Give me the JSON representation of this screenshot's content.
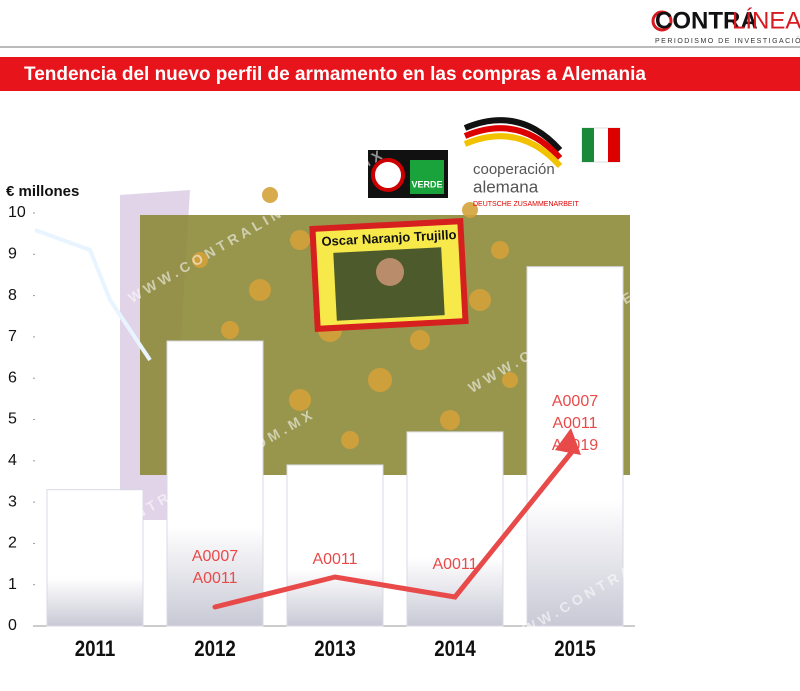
{
  "header": {
    "logo_a": "CONTRA",
    "logo_b": "LÍNEA",
    "tagline": "PERIODISMO DE INVESTIGACIÓN"
  },
  "decor": {
    "portrait": "Oscar Naranjo Trujillo",
    "party": "VERDE",
    "coop_a": "cooperación",
    "coop_b": "alemana",
    "coop_c": "DEUTSCHE ZUSAMMENARBEIT",
    "watermark": "WWW.CONTRALINEA.COM.MX"
  },
  "chart_data": {
    "type": "bar",
    "title": "Tendencia del nuevo perfil de armamento en las compras a Alemania",
    "y_label": "€ millones",
    "categories": [
      "2011",
      "2012",
      "2013",
      "2014",
      "2015"
    ],
    "values": [
      3.3,
      6.9,
      3.9,
      4.7,
      8.7
    ],
    "color": "#ffffff",
    "ylim": [
      0,
      10
    ],
    "yticks": [
      0,
      1,
      2,
      3,
      4,
      5,
      6,
      7,
      8,
      9,
      10
    ],
    "annotations": [
      {
        "category": "2012",
        "codes": [
          "A0007",
          "A0011"
        ]
      },
      {
        "category": "2013",
        "codes": [
          "A0011"
        ]
      },
      {
        "category": "2014",
        "codes": [
          "A0011"
        ]
      },
      {
        "category": "2015",
        "codes": [
          "A0007",
          "A0011",
          "A0019"
        ]
      }
    ],
    "annotation_color": "#e84a4a"
  }
}
